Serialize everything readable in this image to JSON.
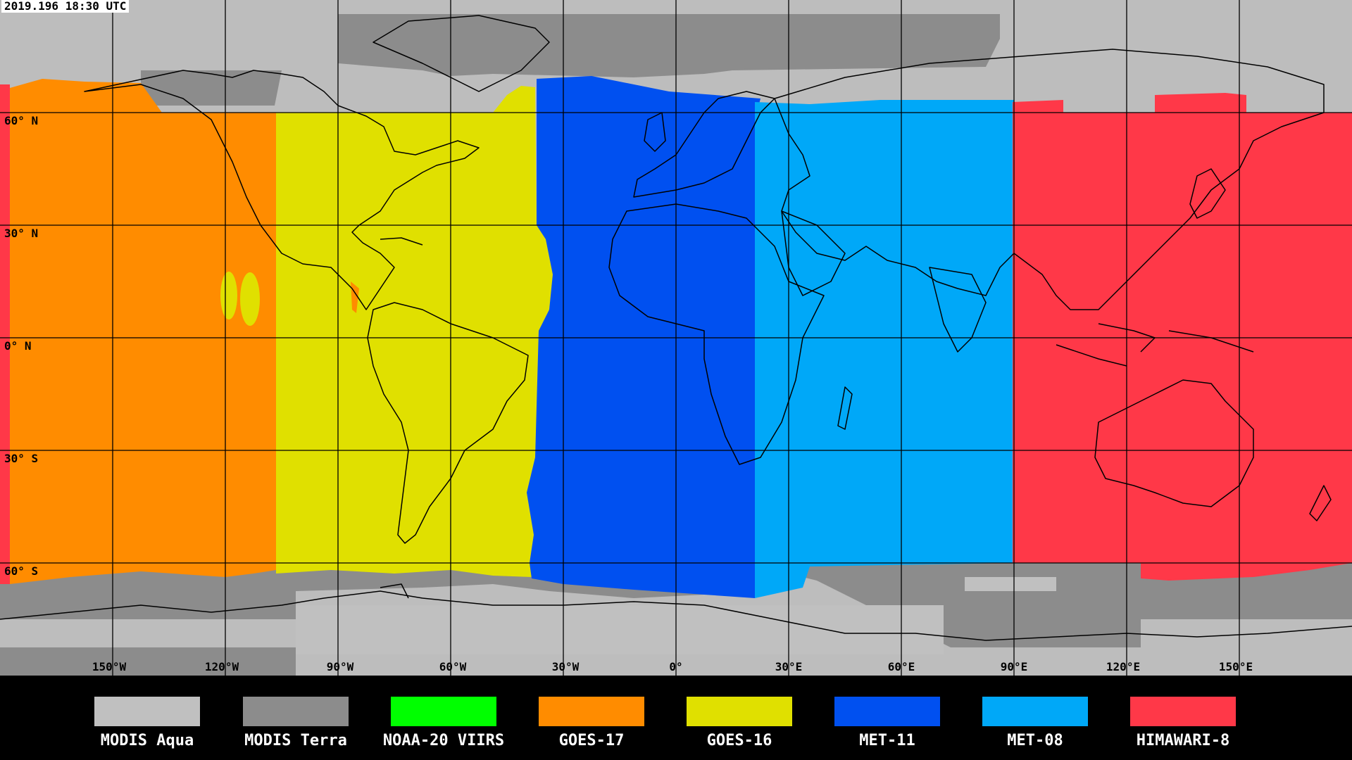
{
  "timestamp": "2019.196 18:30 UTC",
  "colors": {
    "modis_aqua": "#c0c0c0",
    "modis_terra": "#8c8c8c",
    "noaa20": "#00ff00",
    "goes17": "#ff8c00",
    "goes16": "#e0e000",
    "met11": "#0050f0",
    "met08": "#00a8f8",
    "himawari8": "#ff3848"
  },
  "lat_labels": [
    "60° N",
    "30° N",
    "0° N",
    "30° S",
    "60° S"
  ],
  "lon_labels": [
    "150°W",
    "120°W",
    "90°W",
    "60°W",
    "30°W",
    "0°",
    "30°E",
    "60°E",
    "90°E",
    "120°E",
    "150°E"
  ],
  "legend": [
    {
      "label": "MODIS Aqua",
      "color": "#c0c0c0"
    },
    {
      "label": "MODIS Terra",
      "color": "#8c8c8c"
    },
    {
      "label": "NOAA-20 VIIRS",
      "color": "#00ff00"
    },
    {
      "label": "GOES-17",
      "color": "#ff8c00"
    },
    {
      "label": "GOES-16",
      "color": "#e0e000"
    },
    {
      "label": "MET-11",
      "color": "#0050f0"
    },
    {
      "label": "MET-08",
      "color": "#00a8f8"
    },
    {
      "label": "HIMAWARI-8",
      "color": "#ff3848"
    }
  ]
}
